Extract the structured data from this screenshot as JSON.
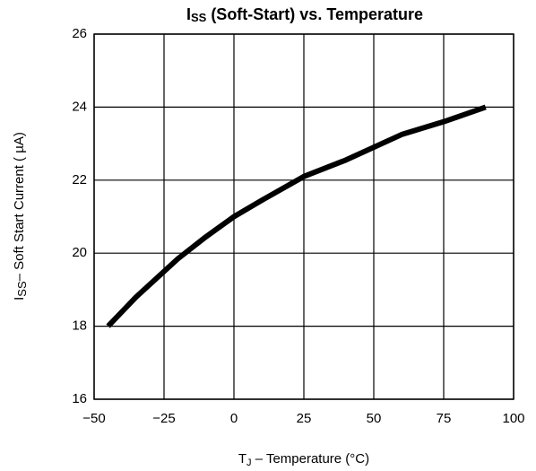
{
  "chart_data": {
    "type": "line",
    "title": [
      "I",
      "SS",
      " (Soft-Start) vs. Temperature"
    ],
    "x_label": [
      "T",
      "J",
      " – Temperature (°C)"
    ],
    "y_label": [
      "I",
      "SS",
      "– Soft Start Current ( µA)"
    ],
    "x": [
      -45,
      -35,
      -25,
      -20,
      -10,
      0,
      10,
      25,
      40,
      60,
      75,
      90
    ],
    "series": [
      {
        "color": "#000000",
        "values": [
          18,
          18.8,
          19.5,
          19.85,
          20.45,
          21,
          21.45,
          22.1,
          22.55,
          23.25,
          23.6,
          24
        ]
      }
    ],
    "xlim": [
      -50,
      100
    ],
    "xticks": [
      {
        "value": -50,
        "label": "−50"
      },
      {
        "value": -25,
        "label": "−25"
      },
      0,
      25,
      50,
      75,
      100
    ],
    "ylim": [
      16,
      26
    ],
    "yticks": [
      16,
      18,
      20,
      22,
      24,
      26
    ],
    "grid": true
  }
}
